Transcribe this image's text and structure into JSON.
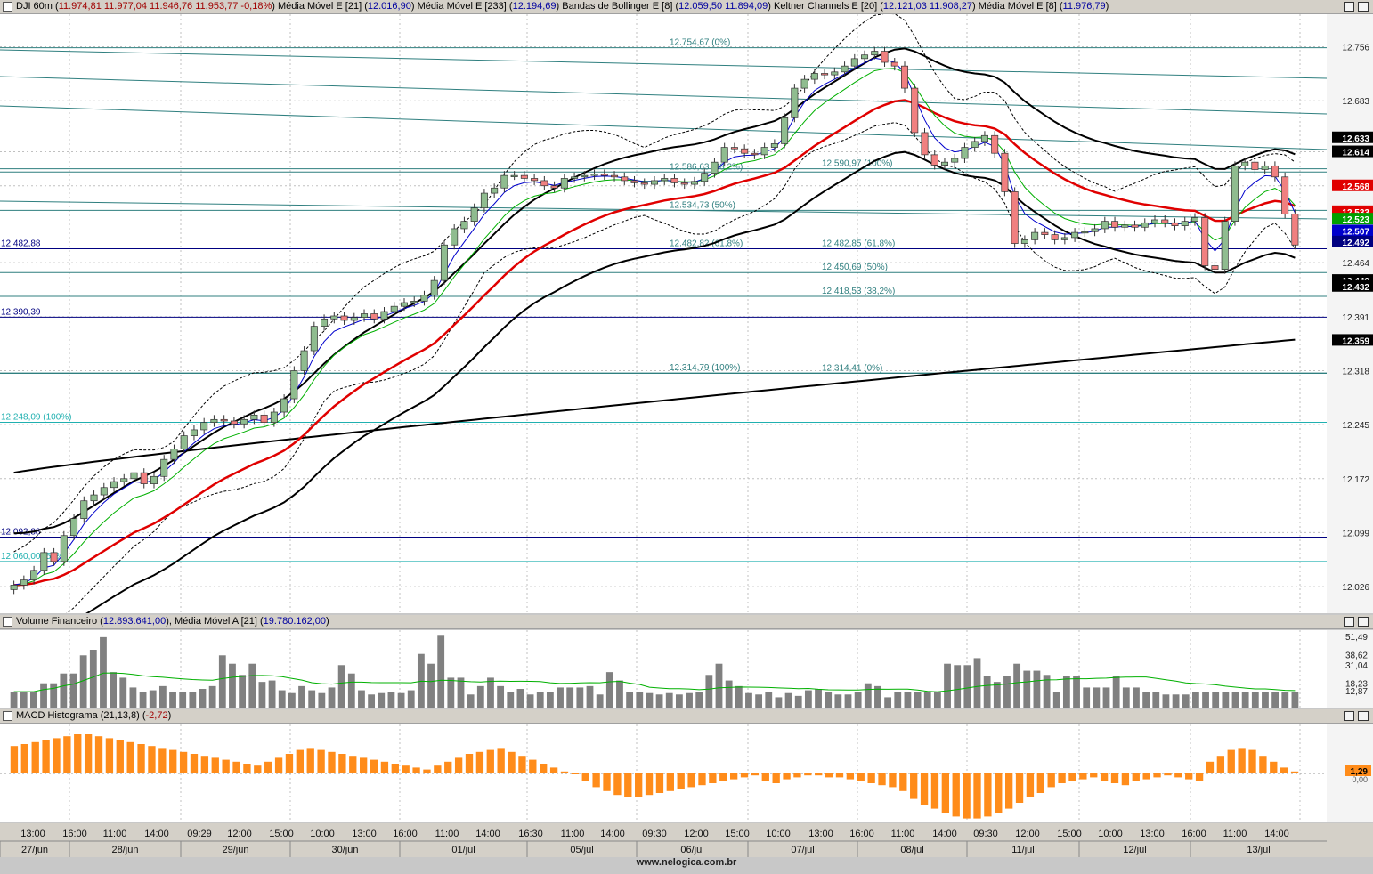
{
  "main_header": {
    "symbol": "DJI 60m",
    "ohlc": "11.974,81  11.977,04  11.946,76  11.953,77  -0,18%",
    "ema21_label": "Média Móvel E [21]",
    "ema21_value": "12.016,90",
    "ema233_label": "Média Móvel E [233]",
    "ema233_value": "12.194,69",
    "bb_label": "Bandas de Bollinger E [8]",
    "bb_value": "12.059,50  11.894,09",
    "kc_label": "Keltner Channels E [20]",
    "kc_value": "12.121,03  11.908,27",
    "ema8_label": "Média Móvel E [8]",
    "ema8_value": "11.976,79"
  },
  "volume_header": {
    "label": "Volume Financeiro",
    "value": "12.893.641,00",
    "ma_label": "Média Móvel A [21]",
    "ma_value": "19.780.162,00"
  },
  "macd_header": {
    "label": "MACD Histograma (21,13,8)",
    "value": "-2,72"
  },
  "footer": "www.nelogica.com.br",
  "colors": {
    "up": "#8fbc8f",
    "down": "#f08080",
    "ema21": "#e00000",
    "ema233": "#000000",
    "keltner": "#000000",
    "ema8": "#0000cc",
    "ema_green": "#00b000",
    "macd": "#ff8c1a",
    "volume": "#808080"
  },
  "chart_data": [
    {
      "type": "candlestick",
      "title": "DJI 60m",
      "y_ticks": [
        "12.756",
        "12.683",
        "12.614",
        "12.568",
        "12.464",
        "12.391",
        "12.318",
        "12.245",
        "12.172",
        "12.099",
        "12.026"
      ],
      "ylim": [
        11990,
        12800
      ],
      "price_tags": [
        {
          "value": 12633,
          "label": "12.633",
          "color": "#000000"
        },
        {
          "value": 12614,
          "label": "12.614",
          "color": "#000000"
        },
        {
          "value": 12568,
          "label": "12.568",
          "color": "#e00000"
        },
        {
          "value": 12533,
          "label": "12.533",
          "color": "#e00000"
        },
        {
          "value": 12523,
          "label": "12.523",
          "color": "#00a000"
        },
        {
          "value": 12507,
          "label": "12.507",
          "color": "#0000cc"
        },
        {
          "value": 12492,
          "label": "12.492",
          "color": "#000080"
        },
        {
          "value": 12440,
          "label": "12.440",
          "color": "#000000"
        },
        {
          "value": 12432,
          "label": "12.432",
          "color": "#000000"
        },
        {
          "value": 12359,
          "label": "12.359",
          "color": "#000000"
        }
      ],
      "hlines": [
        {
          "value": 12754.67,
          "label": "12.754,67 (0%)"
        },
        {
          "value": 12586.63,
          "label": "12.586,63 (38,2%)"
        },
        {
          "value": 12534.73,
          "label": "12.534,73 (50%)"
        },
        {
          "value": 12482.82,
          "label": "12.482,82 (61,8%)"
        },
        {
          "value": 12314.79,
          "label": "12.314,79 (100%)"
        },
        {
          "value": 12590.97,
          "label": "12.590,97 (100%)"
        },
        {
          "value": 12482.85,
          "label": "12.482,85 (61,8%)"
        },
        {
          "value": 12450.69,
          "label": "12.450,69 (50%)"
        },
        {
          "value": 12418.53,
          "label": "12.418,53 (38,2%)"
        },
        {
          "value": 12314.41,
          "label": "12.314,41 (0%)"
        },
        {
          "value": 12482.88,
          "label": "12.482,88"
        },
        {
          "value": 12390.39,
          "label": "12.390,39"
        },
        {
          "value": 12092.88,
          "label": "12.092,88"
        },
        {
          "value": 12248.09,
          "label": "12.248,09 (100%)"
        },
        {
          "value": 12060.0,
          "label": "12.060,00 (50%)"
        }
      ],
      "close": [
        12028,
        12035,
        12048,
        12072,
        12060,
        12095,
        12118,
        12142,
        12150,
        12160,
        12168,
        12172,
        12180,
        12165,
        12175,
        12198,
        12212,
        12230,
        12238,
        12248,
        12252,
        12250,
        12246,
        12252,
        12258,
        12248,
        12262,
        12280,
        12318,
        12345,
        12378,
        12388,
        12392,
        12386,
        12390,
        12395,
        12388,
        12398,
        12405,
        12410,
        12412,
        12420,
        12440,
        12488,
        12510,
        12520,
        12538,
        12558,
        12565,
        12582,
        12582,
        12578,
        12575,
        12568,
        12565,
        12578,
        12580,
        12582,
        12584,
        12582,
        12580,
        12575,
        12572,
        12570,
        12575,
        12578,
        12572,
        12570,
        12574,
        12585,
        12600,
        12620,
        12618,
        12612,
        12610,
        12620,
        12625,
        12660,
        12700,
        12712,
        12720,
        12718,
        12722,
        12730,
        12740,
        12745,
        12750,
        12735,
        12730,
        12700,
        12640,
        12610,
        12596,
        12600,
        12605,
        12620,
        12628,
        12636,
        12612,
        12560,
        12490,
        12495,
        12505,
        12502,
        12495,
        12498,
        12505,
        12506,
        12510,
        12520,
        12512,
        12515,
        12512,
        12518,
        12522,
        12518,
        12514,
        12520,
        12525,
        12460,
        12455,
        12520,
        12595,
        12600,
        12590,
        12595,
        12580,
        12530,
        12488
      ],
      "ema21": [
        12010,
        12016,
        12025,
        12035,
        12044,
        12055,
        12065,
        12076,
        12087,
        12098,
        12108,
        12117,
        12127,
        12136,
        12145,
        12154,
        12163,
        12172,
        12181,
        12190,
        12198,
        12207,
        12216,
        12225,
        12235,
        12247,
        12260,
        12278,
        12298,
        12318,
        12336,
        12350,
        12362,
        12373,
        12383,
        12392,
        12400,
        12408,
        12416,
        12423,
        12430,
        12438,
        12446,
        12456,
        12466,
        12476,
        12485,
        12494,
        12502,
        12509,
        12515,
        12520,
        12524,
        12528,
        12533,
        12538,
        12542,
        12546,
        12550,
        12554,
        12558,
        12562,
        12566,
        12570,
        12574,
        12579,
        12584,
        12590,
        12596,
        12602,
        12608,
        12614,
        12618,
        12621,
        12624,
        12623,
        12620,
        12615,
        12608,
        12600,
        12592,
        12584,
        12576,
        12568,
        12560,
        12553,
        12546,
        12539,
        12534,
        12530,
        12527,
        12526,
        12526,
        12527,
        12528,
        12530,
        12532,
        12533,
        12533
      ]
    },
    {
      "type": "bar",
      "title": "Volume Financeiro",
      "y_ticks": [
        "51,49",
        "38,62",
        "31,04",
        "18,23",
        "12,87"
      ],
      "ylim": [
        0,
        56
      ],
      "values": [
        12,
        12,
        12,
        18,
        18,
        25,
        25,
        38,
        42,
        51,
        26,
        22,
        15,
        12,
        13,
        16,
        12,
        12,
        12,
        14,
        16,
        38,
        32,
        24,
        32,
        19,
        20,
        13,
        11,
        16,
        13,
        11,
        15,
        31,
        25,
        13,
        10,
        11,
        12,
        11,
        13,
        39,
        32,
        52,
        22,
        22,
        10,
        16,
        22,
        16,
        12,
        14,
        10,
        12,
        12,
        15,
        15,
        15,
        16,
        10,
        26,
        20,
        12,
        12,
        11,
        10,
        11,
        10,
        11,
        12,
        24,
        32,
        20,
        16,
        11,
        10,
        12,
        8,
        11,
        9,
        13,
        14,
        12,
        10,
        10,
        12,
        18,
        16,
        8,
        12,
        12,
        12,
        12,
        12,
        32,
        31,
        31,
        36,
        23,
        19,
        23,
        32,
        27,
        27,
        24,
        12,
        23,
        23,
        15,
        15,
        15,
        23,
        15,
        15,
        12,
        12,
        10,
        10,
        10,
        12,
        12,
        12,
        12,
        12,
        12,
        12,
        12,
        12,
        12,
        12
      ]
    },
    {
      "type": "bar",
      "title": "MACD Histograma (21,13,8)",
      "y_ticks": [
        "1,29",
        "0,00"
      ],
      "ylim": [
        -50,
        50
      ],
      "values": [
        28,
        30,
        32,
        34,
        36,
        38,
        40,
        40,
        38,
        36,
        34,
        32,
        30,
        28,
        26,
        24,
        22,
        20,
        18,
        16,
        14,
        12,
        10,
        8,
        12,
        16,
        20,
        24,
        26,
        24,
        22,
        20,
        18,
        16,
        14,
        12,
        10,
        8,
        6,
        4,
        8,
        12,
        16,
        20,
        22,
        24,
        26,
        22,
        18,
        14,
        10,
        6,
        2,
        0,
        -8,
        -14,
        -18,
        -22,
        -24,
        -24,
        -22,
        -20,
        -18,
        -16,
        -14,
        -12,
        -10,
        -8,
        -6,
        -4,
        -2,
        -8,
        -10,
        -6,
        -4,
        -2,
        -2,
        -4,
        -4,
        -6,
        -8,
        -10,
        -12,
        -14,
        -18,
        -26,
        -32,
        -36,
        -40,
        -44,
        -46,
        -46,
        -44,
        -40,
        -36,
        -30,
        -24,
        -20,
        -14,
        -10,
        -8,
        -6,
        -4,
        -8,
        -10,
        -12,
        -8,
        -6,
        -4,
        -2,
        -4,
        -6,
        -8,
        12,
        18,
        24,
        26,
        24,
        18,
        12,
        6,
        2
      ]
    }
  ],
  "x_axis": {
    "times": [
      "13:00",
      "16:00",
      "11:00",
      "14:00",
      "09:29",
      "12:00",
      "15:00",
      "10:00",
      "13:00",
      "16:00",
      "11:00",
      "14:00",
      "16:30",
      "11:00",
      "14:00",
      "09:30",
      "12:00",
      "15:00",
      "10:00",
      "13:00",
      "16:00",
      "11:00",
      "14:00",
      "09:30",
      "12:00",
      "15:00",
      "10:00",
      "13:00",
      "16:00",
      "11:00",
      "14:00"
    ],
    "dates": [
      "27/jun",
      "28/jun",
      "29/jun",
      "30/jun",
      "01/jul",
      "05/jul",
      "06/jul",
      "07/jul",
      "08/jul",
      "11/jul",
      "12/jul",
      "13/jul"
    ]
  }
}
